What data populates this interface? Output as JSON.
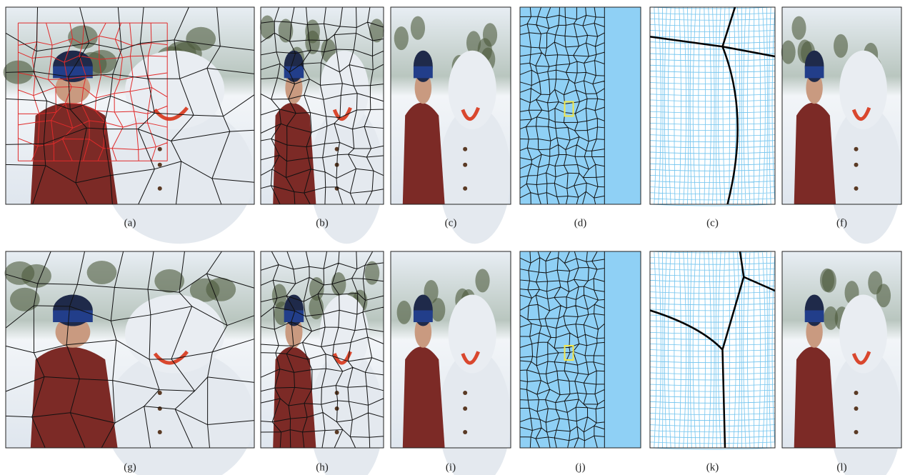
{
  "panels": [
    {
      "label": "(a)"
    },
    {
      "label": "(b)"
    },
    {
      "label": "(c)"
    },
    {
      "label": "(d)"
    },
    {
      "label": "(c)"
    },
    {
      "label": "(f)"
    },
    {
      "label": "(g)"
    },
    {
      "label": "(h)"
    },
    {
      "label": "(i)"
    },
    {
      "label": "(j)"
    },
    {
      "label": "(k)"
    },
    {
      "label": "(l)"
    }
  ]
}
